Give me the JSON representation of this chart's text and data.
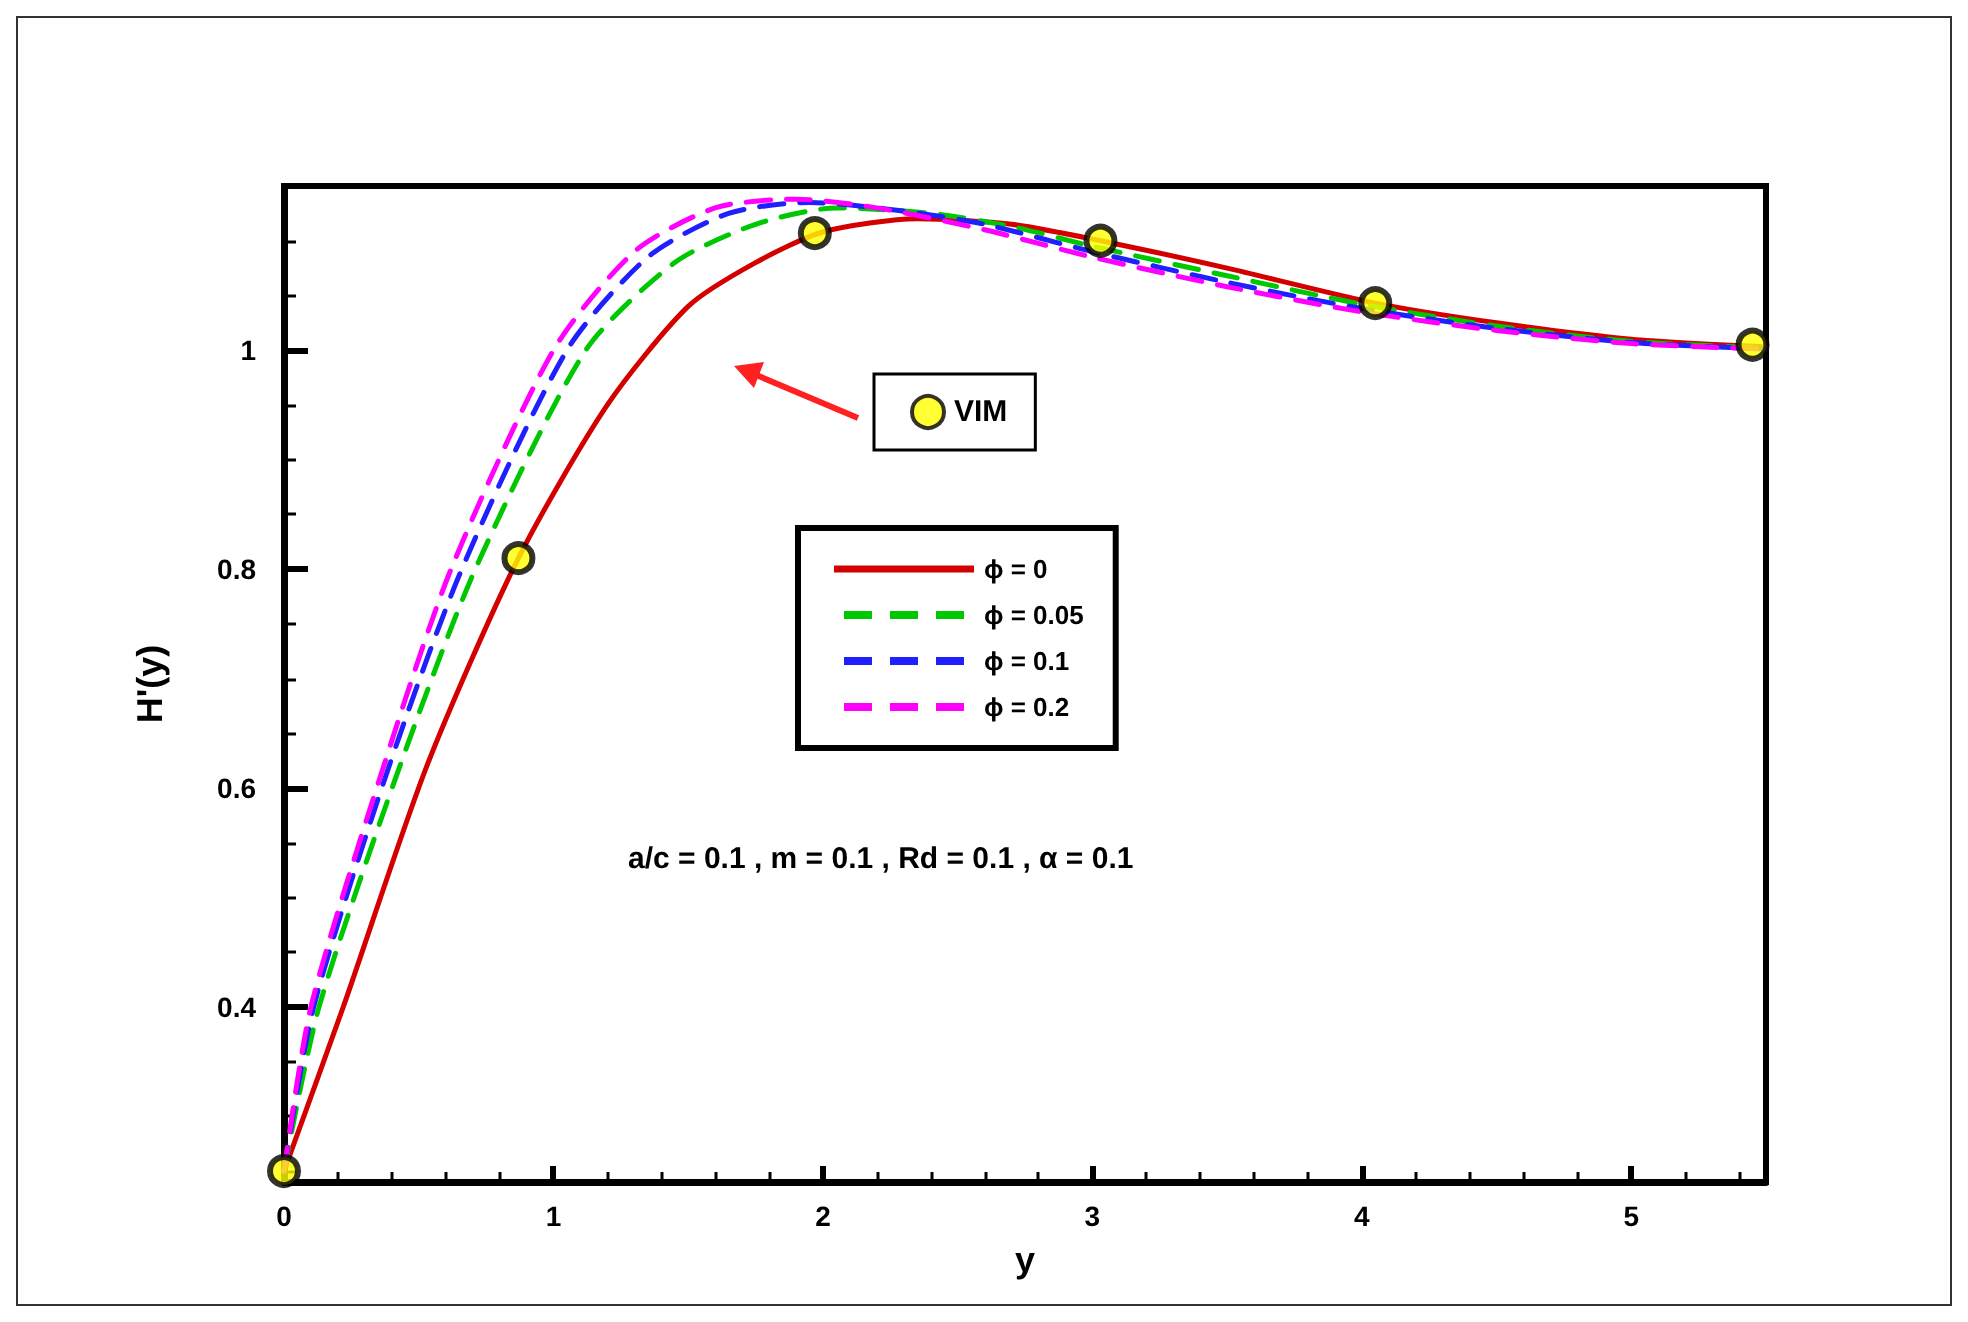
{
  "chart_data": {
    "type": "line",
    "xlabel": "y",
    "ylabel": "H'(y)",
    "xlim": [
      0,
      5.5
    ],
    "ylim": [
      0.24,
      1.15
    ],
    "xticks": [
      0,
      1,
      2,
      3,
      4,
      5
    ],
    "yticks": [
      0.4,
      0.6,
      0.8,
      1
    ],
    "grid": false,
    "legend": "center",
    "annotations": [
      "a/c = 0.1 , m = 0.1 , Rd = 0.1 , α = 0.1"
    ],
    "series": [
      {
        "name": "ϕ = 0",
        "color": "#d40000",
        "line_style": "solid",
        "x": [
          0,
          0.22,
          0.53,
          0.87,
          1.2,
          1.5,
          1.75,
          2.0,
          2.35,
          2.7,
          3.03,
          3.5,
          4.05,
          4.5,
          5.0,
          5.5
        ],
        "values": [
          0.25,
          0.4,
          0.62,
          0.81,
          0.95,
          1.04,
          1.08,
          1.108,
          1.12,
          1.115,
          1.1,
          1.075,
          1.043,
          1.025,
          1.01,
          1.003
        ]
      },
      {
        "name": "ϕ = 0.05",
        "color": "#00c800",
        "line_style": "dashed",
        "x": [
          0,
          0.13,
          0.43,
          0.71,
          1.12,
          1.45,
          1.75,
          2.05,
          2.4,
          2.7,
          3.0,
          3.5,
          4.0,
          4.5,
          5.0,
          5.5
        ],
        "values": [
          0.25,
          0.4,
          0.62,
          0.8,
          1.0,
          1.08,
          1.115,
          1.13,
          1.125,
          1.113,
          1.095,
          1.068,
          1.042,
          1.022,
          1.008,
          1.002
        ]
      },
      {
        "name": "ϕ = 0.1",
        "color": "#2020ff",
        "line_style": "dashed",
        "x": [
          0,
          0.11,
          0.39,
          0.66,
          1.05,
          1.35,
          1.65,
          1.95,
          2.3,
          2.6,
          3.0,
          3.5,
          4.0,
          4.5,
          5.0,
          5.5
        ],
        "values": [
          0.25,
          0.4,
          0.62,
          0.8,
          1.0,
          1.085,
          1.125,
          1.135,
          1.127,
          1.115,
          1.09,
          1.062,
          1.038,
          1.02,
          1.007,
          1.001
        ]
      },
      {
        "name": "ϕ = 0.2",
        "color": "#ff00ff",
        "line_style": "dashed",
        "x": [
          0,
          0.1,
          0.37,
          0.62,
          1.0,
          1.3,
          1.6,
          1.9,
          2.2,
          2.6,
          3.0,
          3.5,
          4.0,
          4.5,
          5.0,
          5.5
        ],
        "values": [
          0.25,
          0.4,
          0.62,
          0.8,
          1.0,
          1.09,
          1.13,
          1.138,
          1.13,
          1.11,
          1.085,
          1.058,
          1.035,
          1.018,
          1.006,
          1.001
        ]
      },
      {
        "name": "VIM",
        "type": "scatter",
        "color": "#ffff00",
        "marker": "circle",
        "x": [
          0,
          0.87,
          1.97,
          3.03,
          4.05,
          5.45
        ],
        "values": [
          0.25,
          0.81,
          1.107,
          1.1,
          1.043,
          1.005
        ]
      }
    ]
  }
}
